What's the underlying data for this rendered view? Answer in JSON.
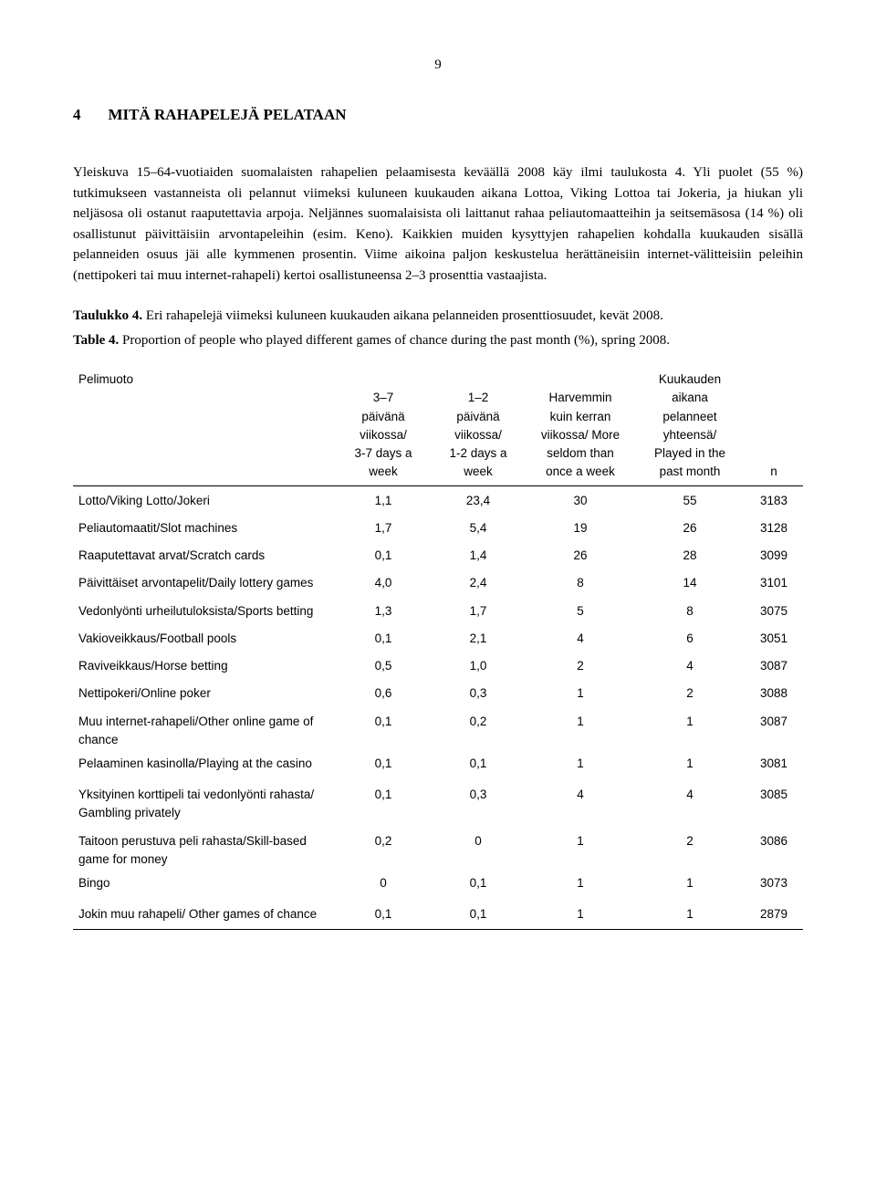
{
  "page_number": "9",
  "heading_number": "4",
  "heading_title": "MITÄ RAHAPELEJÄ PELATAAN",
  "body_text": "Yleiskuva 15–64-vuotiaiden suomalaisten rahapelien pelaamisesta keväällä 2008 käy ilmi taulukosta 4. Yli puolet (55 %) tutkimukseen vastanneista oli pelannut viimeksi kuluneen kuukauden aikana Lottoa, Viking Lottoa tai Jokeria, ja hiukan yli neljäsosa oli ostanut raaputettavia arpoja. Neljännes suomalaisista oli laittanut rahaa peliautomaatteihin ja seitsemäsosa (14 %) oli osallistunut päivittäisiin arvontapeleihin (esim. Keno). Kaikkien muiden kysyttyjen rahapelien kohdalla kuukauden sisällä pelanneiden osuus jäi alle kymmenen prosentin. Viime aikoina paljon keskustelua herättäneisiin internet-välitteisiin peleihin (nettipokeri tai muu internet-rahapeli) kertoi osallistuneensa 2–3 prosenttia vastaajista.",
  "caption_fi_label": "Taulukko 4.",
  "caption_fi_text": " Eri rahapelejä viimeksi kuluneen kuukauden aikana pelanneiden prosenttiosuudet, kevät 2008.",
  "caption_en_label": "Table 4.",
  "caption_en_text": " Proportion of people who played different games of chance during the past month (%), spring 2008.",
  "table": {
    "col0_header": "Pelimuoto",
    "col1_header": "3–7\npäivänä\nviikossa/\n3-7 days a\nweek",
    "col2_header": "1–2\npäivänä\nviikossa/\n1-2 days a\nweek",
    "col3_header": "Harvemmin\nkuin kerran\nviikossa/ More\nseldom than\nonce a week",
    "col4_header": "Kuukauden\naikana\npelanneet\nyhteensä/\nPlayed in the\npast month",
    "col5_header": "n",
    "rows": [
      {
        "label": "Lotto/Viking Lotto/Jokeri",
        "c1": "1,1",
        "c2": "23,4",
        "c3": "30",
        "c4": "55",
        "c5": "3183"
      },
      {
        "label": "Peliautomaatit/Slot machines",
        "c1": "1,7",
        "c2": "5,4",
        "c3": "19",
        "c4": "26",
        "c5": "3128"
      },
      {
        "label": "Raaputettavat arvat/Scratch cards",
        "c1": "0,1",
        "c2": "1,4",
        "c3": "26",
        "c4": "28",
        "c5": "3099"
      },
      {
        "label": "Päivittäiset arvontapelit/Daily lottery games",
        "c1": "4,0",
        "c2": "2,4",
        "c3": "8",
        "c4": "14",
        "c5": "3101"
      },
      {
        "label": "Vedonlyönti urheilutuloksista/Sports betting",
        "c1": "1,3",
        "c2": "1,7",
        "c3": "5",
        "c4": "8",
        "c5": "3075"
      },
      {
        "label": "Vakioveikkaus/Football pools",
        "c1": "0,1",
        "c2": "2,1",
        "c3": "4",
        "c4": "6",
        "c5": "3051"
      },
      {
        "label": "Raviveikkaus/Horse betting",
        "c1": "0,5",
        "c2": "1,0",
        "c3": "2",
        "c4": "4",
        "c5": "3087"
      },
      {
        "label": "Nettipokeri/Online poker",
        "c1": "0,6",
        "c2": "0,3",
        "c3": "1",
        "c4": "2",
        "c5": "3088"
      },
      {
        "label": "Muu internet-rahapeli/Other online game of chance",
        "c1": "0,1",
        "c2": "0,2",
        "c3": "1",
        "c4": "1",
        "c5": "3087"
      },
      {
        "label": "Pelaaminen kasinolla/Playing at the casino",
        "c1": "0,1",
        "c2": "0,1",
        "c3": "1",
        "c4": "1",
        "c5": "3081"
      },
      {
        "label": "Yksityinen korttipeli tai vedonlyönti rahasta/ Gambling privately",
        "c1": "0,1",
        "c2": "0,3",
        "c3": "4",
        "c4": "4",
        "c5": "3085"
      },
      {
        "label": "Taitoon perustuva peli rahasta/Skill-based game for money",
        "c1": "0,2",
        "c2": "0",
        "c3": "1",
        "c4": "2",
        "c5": "3086"
      },
      {
        "label": "Bingo",
        "c1": "0",
        "c2": "0,1",
        "c3": "1",
        "c4": "1",
        "c5": "3073"
      },
      {
        "label": "Jokin muu rahapeli/ Other games of chance",
        "c1": "0,1",
        "c2": "0,1",
        "c3": "1",
        "c4": "1",
        "c5": "2879"
      }
    ]
  }
}
